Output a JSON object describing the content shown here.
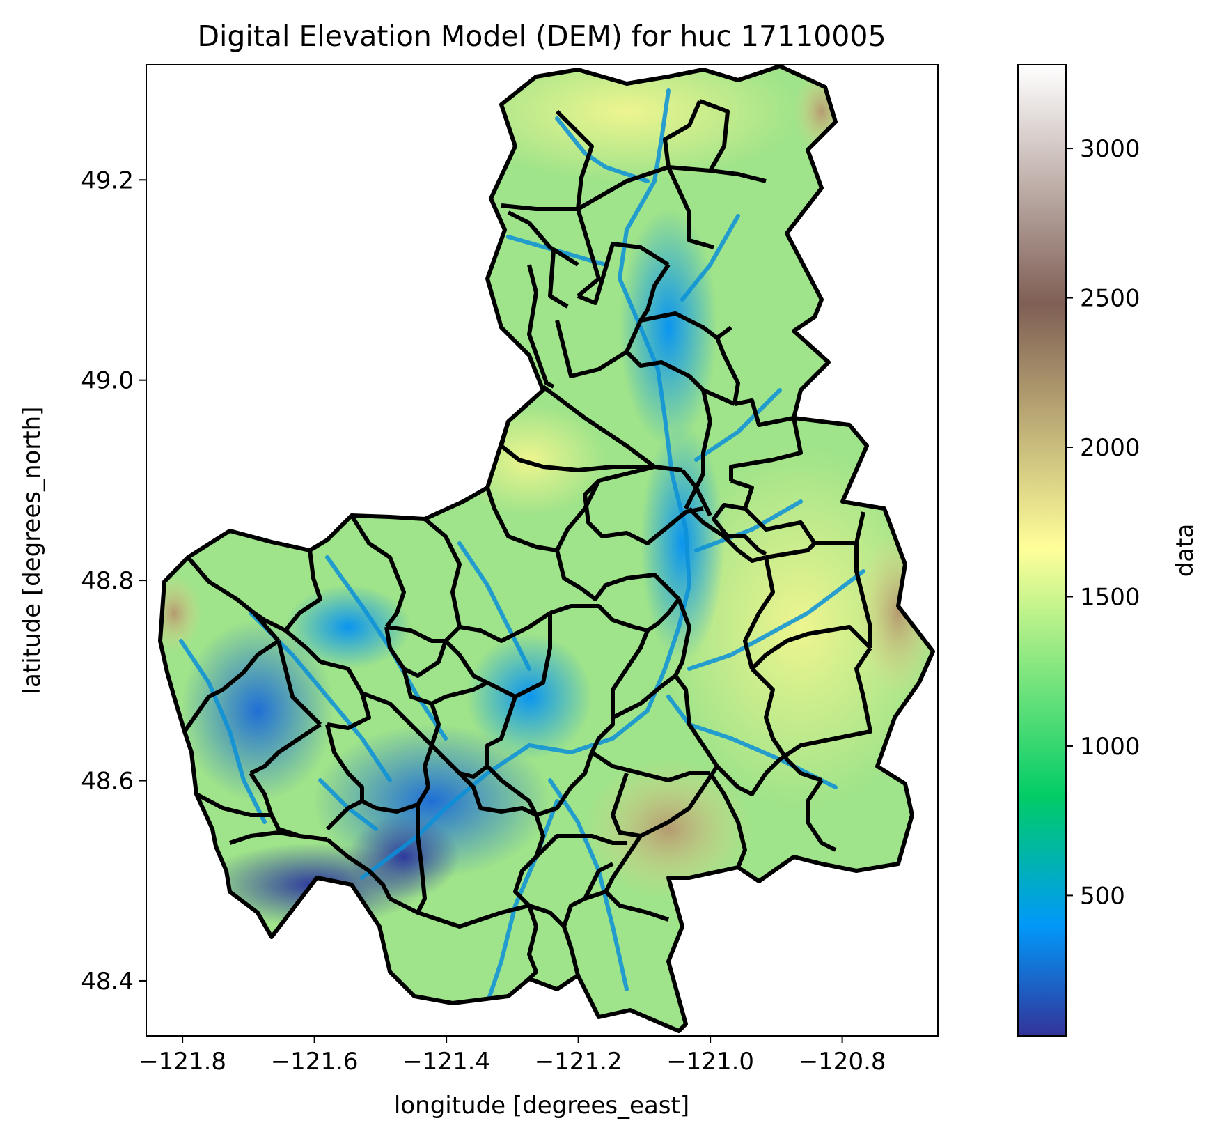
{
  "title": "Digital Elevation Model (DEM) for huc 17110005",
  "map": {
    "xlabel": "longitude [degrees_east]",
    "ylabel": "latitude [degrees_north]",
    "xlim": [
      -121.855,
      -120.655
    ],
    "ylim": [
      48.345,
      49.315
    ],
    "xticks": [
      {
        "value": -121.8,
        "label": "−121.8"
      },
      {
        "value": -121.6,
        "label": "−121.6"
      },
      {
        "value": -121.4,
        "label": "−121.4"
      },
      {
        "value": -121.2,
        "label": "−121.2"
      },
      {
        "value": -121.0,
        "label": "−121.0"
      },
      {
        "value": -120.8,
        "label": "−120.8"
      }
    ],
    "yticks": [
      {
        "value": 49.2,
        "label": "49.2"
      },
      {
        "value": 49.0,
        "label": "49.0"
      },
      {
        "value": 48.8,
        "label": "48.8"
      },
      {
        "value": 48.6,
        "label": "48.6"
      },
      {
        "value": 48.4,
        "label": "48.4"
      }
    ],
    "colormap": "terrain",
    "boundary_color": "#000000",
    "river_color": "#0a8fd8"
  },
  "colorbar": {
    "label": "data",
    "range": [
      30,
      3280
    ],
    "ticks": [
      {
        "value": 500,
        "label": "500"
      },
      {
        "value": 1000,
        "label": "1000"
      },
      {
        "value": 1500,
        "label": "1500"
      },
      {
        "value": 2000,
        "label": "2000"
      },
      {
        "value": 2500,
        "label": "2500"
      },
      {
        "value": 3000,
        "label": "3000"
      }
    ],
    "stops": [
      {
        "value": 30,
        "color": "#333399"
      },
      {
        "value": 400,
        "color": "#0199f9"
      },
      {
        "value": 830,
        "color": "#01cc66"
      },
      {
        "value": 1660,
        "color": "#ffff99"
      },
      {
        "value": 2480,
        "color": "#7f5f55"
      },
      {
        "value": 3280,
        "color": "#ffffff"
      }
    ]
  },
  "chart_data": {
    "type": "heatmap",
    "title": "Digital Elevation Model (DEM) for huc 17110005",
    "xlabel": "longitude [degrees_east]",
    "ylabel": "latitude [degrees_north]",
    "xlim": [
      -121.855,
      -120.655
    ],
    "ylim": [
      48.345,
      49.315
    ],
    "colorbar_label": "data",
    "value_range": [
      30,
      3280
    ],
    "grid": false,
    "low_areas": [
      {
        "lon": -121.68,
        "lat": 48.52,
        "value": 60
      },
      {
        "lon": -121.45,
        "lat": 48.53,
        "value": 120
      },
      {
        "lon": -121.72,
        "lat": 48.65,
        "value": 250
      },
      {
        "lon": -121.07,
        "lat": 49.02,
        "value": 420
      },
      {
        "lon": -121.13,
        "lat": 49.12,
        "value": 450
      }
    ],
    "high_areas": [
      {
        "lon": -121.82,
        "lat": 48.76,
        "value": 2300
      },
      {
        "lon": -121.1,
        "lat": 48.56,
        "value": 2200
      },
      {
        "lon": -120.72,
        "lat": 48.72,
        "value": 2100
      },
      {
        "lon": -120.85,
        "lat": 49.25,
        "value": 2200
      }
    ]
  }
}
